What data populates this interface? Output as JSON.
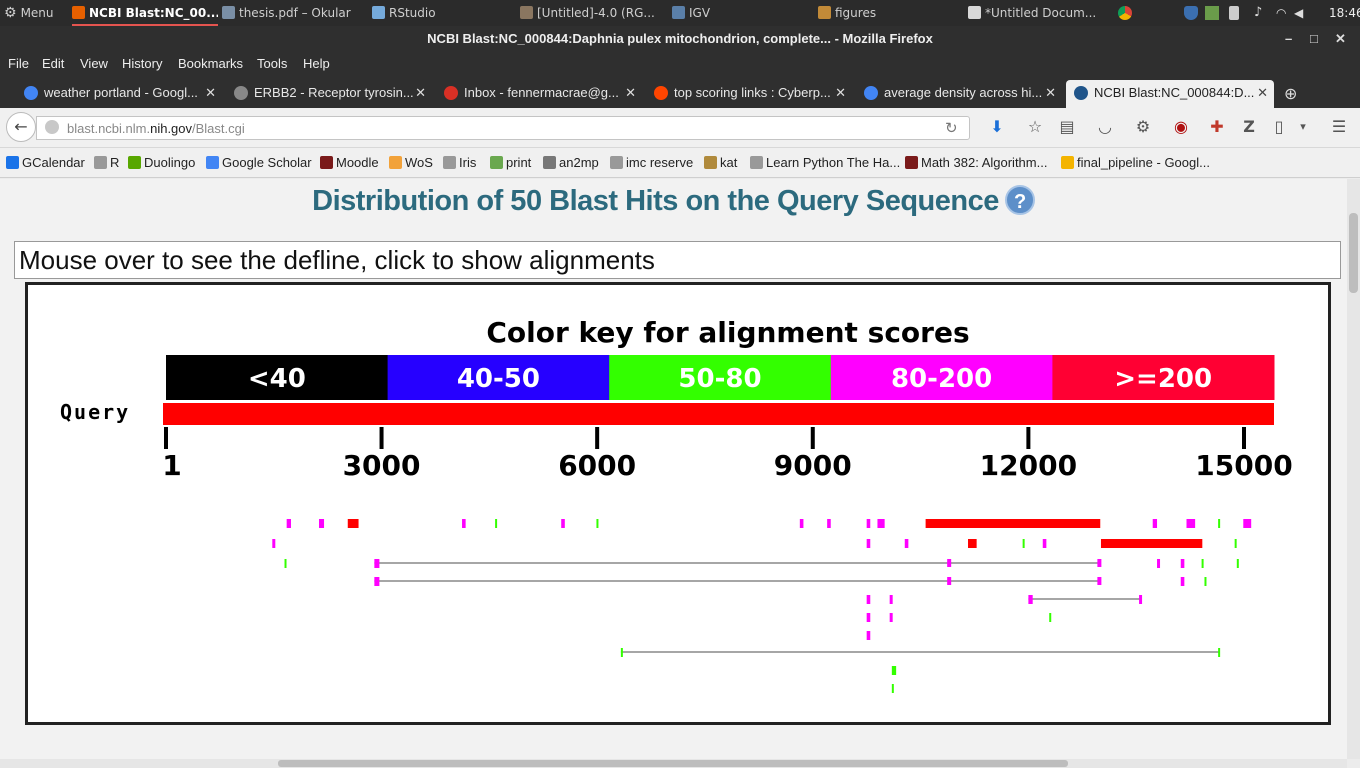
{
  "os_panel": {
    "menu_label": "Menu",
    "tasks": [
      {
        "label": "NCBI Blast:NC_00...",
        "active": true,
        "icon": "firefox-icon"
      },
      {
        "label": "thesis.pdf – Okular",
        "active": false,
        "icon": "okular-icon"
      },
      {
        "label": "RStudio",
        "active": false,
        "icon": "rstudio-icon"
      },
      {
        "label": "[Untitled]-4.0 (RG...",
        "active": false,
        "icon": "gimp-icon"
      },
      {
        "label": "IGV",
        "active": false,
        "icon": "igv-icon"
      },
      {
        "label": "figures",
        "active": false,
        "icon": "folder-icon"
      },
      {
        "label": "*Untitled Docum...",
        "active": false,
        "icon": "document-icon"
      }
    ],
    "clock": "18:46"
  },
  "window": {
    "title": "NCBI Blast:NC_000844:Daphnia pulex mitochondrion, complete... - Mozilla Firefox"
  },
  "menubar": [
    "File",
    "Edit",
    "View",
    "History",
    "Bookmarks",
    "Tools",
    "Help"
  ],
  "tabs": [
    {
      "label": "weather portland - Googl...",
      "icon": "google-icon",
      "active": false
    },
    {
      "label": "ERBB2 - Receptor tyrosin...",
      "icon": "page-icon",
      "active": false
    },
    {
      "label": "Inbox - fennermacrae@g...",
      "icon": "gmail-icon",
      "active": false
    },
    {
      "label": "top scoring links : Cyberp...",
      "icon": "reddit-icon",
      "active": false
    },
    {
      "label": "average density across hi...",
      "icon": "google-icon",
      "active": false
    },
    {
      "label": "NCBI Blast:NC_000844:D...",
      "icon": "ncbi-icon",
      "active": true
    }
  ],
  "navbar": {
    "url_prefix": "blast.ncbi.nlm.",
    "url_domain": "nih.gov",
    "url_path": "/Blast.cgi"
  },
  "bookmarks": [
    {
      "label": "GCalendar",
      "color": "#1a73e8"
    },
    {
      "label": "R",
      "color": "#999999"
    },
    {
      "label": "Duolingo",
      "color": "#58a700"
    },
    {
      "label": "Google Scholar",
      "color": "#4285f4"
    },
    {
      "label": "Moodle",
      "color": "#7a1a1a"
    },
    {
      "label": "WoS",
      "color": "#f2a23a"
    },
    {
      "label": "Iris",
      "color": "#999999"
    },
    {
      "label": "print",
      "color": "#6aa84f"
    },
    {
      "label": "an2mp",
      "color": "#777777"
    },
    {
      "label": "imc reserve",
      "color": "#999999"
    },
    {
      "label": "kat",
      "color": "#b08a3c"
    },
    {
      "label": "Learn Python The Ha...",
      "color": "#999999"
    },
    {
      "label": "Math 382: Algorithm...",
      "color": "#7a1a1a"
    },
    {
      "label": "final_pipeline - Googl...",
      "color": "#f4b400"
    }
  ],
  "page": {
    "heading": "Distribution of 50 Blast Hits on the Query Sequence",
    "help_glyph": "?",
    "defline": "Mouse over to see the defline, click to show alignments"
  },
  "chart_data": {
    "type": "alignment-map",
    "title": "Color key for alignment scores",
    "query_label": "Query",
    "query_length": 15500,
    "color_key": [
      {
        "label": "<40",
        "color": "#000000"
      },
      {
        "label": "40-50",
        "color": "#2600ff"
      },
      {
        "label": "50-80",
        "color": "#33ff00"
      },
      {
        "label": "80-200",
        "color": "#ff00ff"
      },
      {
        "label": ">=200",
        "color": "#ff0033"
      }
    ],
    "ticks": [
      1,
      3000,
      6000,
      9000,
      12000,
      15000
    ],
    "tick_labels": [
      "1",
      "3000",
      "6000",
      "9000",
      "12000",
      "15000"
    ],
    "hits": [
      {
        "row": 0,
        "segments": [
          [
            1680,
            1740,
            3
          ],
          [
            2130,
            2200,
            3
          ],
          [
            2530,
            2680,
            4
          ],
          [
            4120,
            4170,
            3
          ],
          [
            4580,
            4600,
            2
          ],
          [
            5500,
            5550,
            3
          ],
          [
            5990,
            6010,
            2
          ],
          [
            8820,
            8870,
            3
          ],
          [
            9200,
            9250,
            3
          ],
          [
            9750,
            9800,
            3
          ],
          [
            9900,
            10000,
            3
          ],
          [
            10570,
            13000,
            4
          ],
          [
            13730,
            13790,
            3
          ],
          [
            14200,
            14320,
            3
          ],
          [
            14640,
            14660,
            2
          ],
          [
            14990,
            15100,
            3
          ]
        ]
      },
      {
        "row": 1,
        "segments": [
          [
            1480,
            1500,
            3
          ],
          [
            9750,
            9800,
            3
          ],
          [
            10280,
            10330,
            3
          ],
          [
            11160,
            11280,
            4
          ],
          [
            11920,
            11940,
            2
          ],
          [
            12200,
            12250,
            3
          ],
          [
            13010,
            14420,
            4
          ],
          [
            14870,
            14890,
            2
          ]
        ],
        "lines": [
          [
            13290,
            13310,
            0
          ]
        ]
      },
      {
        "row": 2,
        "segments": [
          [
            1650,
            1670,
            2
          ],
          [
            2900,
            2970,
            3
          ],
          [
            13790,
            13810,
            3
          ],
          [
            14120,
            14170,
            3
          ],
          [
            14410,
            14430,
            2
          ],
          [
            14900,
            14920,
            2
          ]
        ],
        "lines": [
          [
            2900,
            13000,
            0
          ]
        ],
        "marks": [
          [
            10870,
            10910,
            3
          ],
          [
            12960,
            13000,
            3
          ]
        ]
      },
      {
        "row": 3,
        "segments": [
          [
            2900,
            2970,
            3
          ],
          [
            14120,
            14170,
            3
          ],
          [
            14450,
            14470,
            2
          ]
        ],
        "lines": [
          [
            2900,
            13000,
            0
          ]
        ],
        "marks": [
          [
            10870,
            10910,
            3
          ],
          [
            12960,
            13000,
            3
          ]
        ]
      },
      {
        "row": 4,
        "segments": [
          [
            9750,
            9800,
            3
          ],
          [
            10070,
            10090,
            3
          ],
          [
            12000,
            12060,
            3
          ],
          [
            13540,
            13560,
            3
          ]
        ],
        "lines": [
          [
            12000,
            13560,
            0
          ]
        ]
      },
      {
        "row": 5,
        "segments": [
          [
            9750,
            9800,
            3
          ],
          [
            10070,
            10090,
            3
          ],
          [
            12290,
            12310,
            2
          ]
        ]
      },
      {
        "row": 6,
        "segments": [
          [
            9750,
            9800,
            3
          ]
        ]
      },
      {
        "row": 7,
        "segments": [
          [
            6330,
            6350,
            2
          ],
          [
            14640,
            14660,
            2
          ]
        ],
        "lines": [
          [
            6330,
            14660,
            0
          ]
        ]
      },
      {
        "row": 8,
        "segments": [
          [
            10100,
            10160,
            2
          ]
        ]
      },
      {
        "row": 9,
        "segments": [
          [
            10100,
            10120,
            2
          ]
        ]
      }
    ]
  }
}
